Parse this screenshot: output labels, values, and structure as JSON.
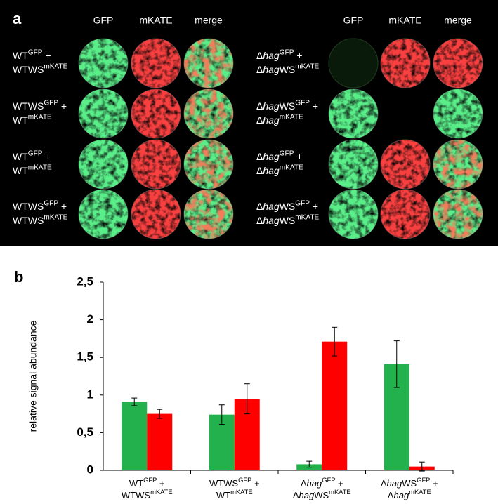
{
  "panel_a": {
    "label": "a",
    "left": {
      "headers": [
        "GFP",
        "mKATE",
        "merge"
      ],
      "rows": [
        [
          [
            {
              "t": "WT"
            },
            {
              "sup": "GFP"
            },
            {
              "t": " +"
            }
          ],
          [
            {
              "t": "WTWS"
            },
            {
              "sup": "mKATE"
            }
          ]
        ],
        [
          [
            {
              "t": "WTWS"
            },
            {
              "sup": "GFP"
            },
            {
              "t": " +"
            }
          ],
          [
            {
              "t": "WT"
            },
            {
              "sup": "mKATE"
            }
          ]
        ],
        [
          [
            {
              "t": "WT"
            },
            {
              "sup": "GFP"
            },
            {
              "t": " +"
            }
          ],
          [
            {
              "t": "WT"
            },
            {
              "sup": "mKATE"
            }
          ]
        ],
        [
          [
            {
              "t": "WTWS"
            },
            {
              "sup": "GFP"
            },
            {
              "t": " +"
            }
          ],
          [
            {
              "t": "WTWS"
            },
            {
              "sup": "mKATE"
            }
          ]
        ]
      ]
    },
    "right": {
      "headers": [
        "GFP",
        "mKATE",
        "merge"
      ],
      "rows": [
        [
          [
            {
              "t": "Δ"
            },
            {
              "i": "hag"
            },
            {
              "sup": "GFP"
            },
            {
              "t": " +"
            }
          ],
          [
            {
              "t": "Δ"
            },
            {
              "i": "hag"
            },
            {
              "t": "WS"
            },
            {
              "sup": "mKATE"
            }
          ]
        ],
        [
          [
            {
              "t": "Δ"
            },
            {
              "i": "hag"
            },
            {
              "t": "WS"
            },
            {
              "sup": "GFP"
            },
            {
              "t": " +"
            }
          ],
          [
            {
              "t": "Δ"
            },
            {
              "i": "hag"
            },
            {
              "sup": "mKATE"
            }
          ]
        ],
        [
          [
            {
              "t": "Δ"
            },
            {
              "i": "hag"
            },
            {
              "sup": "GFP"
            },
            {
              "t": " +"
            }
          ],
          [
            {
              "t": "Δ"
            },
            {
              "i": "hag"
            },
            {
              "sup": "mKATE"
            }
          ]
        ],
        [
          [
            {
              "t": "Δ"
            },
            {
              "i": "hag"
            },
            {
              "t": "WS"
            },
            {
              "sup": "GFP"
            },
            {
              "t": " +"
            }
          ],
          [
            {
              "t": "Δ"
            },
            {
              "i": "hag"
            },
            {
              "t": "WS"
            },
            {
              "sup": "mKATE"
            }
          ]
        ]
      ]
    }
  },
  "chart_data": {
    "type": "bar",
    "panel_label": "b",
    "ylabel": "relative signal abundance",
    "categories": [
      [
        [
          {
            "t": "WT"
          },
          {
            "sup": "GFP"
          },
          {
            "t": " +"
          }
        ],
        [
          {
            "t": "WTWS"
          },
          {
            "sup": "mKATE"
          }
        ]
      ],
      [
        [
          {
            "t": "WTWS"
          },
          {
            "sup": "GFP"
          },
          {
            "t": " +"
          }
        ],
        [
          {
            "t": "WT"
          },
          {
            "sup": "mKATE"
          }
        ]
      ],
      [
        [
          {
            "t": "Δ"
          },
          {
            "i": "hag"
          },
          {
            "sup": "GFP"
          },
          {
            "t": " +"
          }
        ],
        [
          {
            "t": "Δ"
          },
          {
            "i": "hag"
          },
          {
            "t": "WS"
          },
          {
            "sup": "mKATE"
          }
        ]
      ],
      [
        [
          {
            "t": "Δ"
          },
          {
            "i": "hag"
          },
          {
            "t": "WS"
          },
          {
            "sup": "GFP"
          },
          {
            "t": " +"
          }
        ],
        [
          {
            "t": "Δ"
          },
          {
            "i": "hag"
          },
          {
            "sup": "mKATE"
          }
        ]
      ]
    ],
    "series": [
      {
        "color": "#22b14c",
        "values": [
          0.91,
          0.74,
          0.08,
          1.41
        ],
        "errors": [
          0.05,
          0.13,
          0.04,
          0.31
        ]
      },
      {
        "color": "#ff0000",
        "values": [
          0.75,
          0.95,
          1.71,
          0.05
        ],
        "errors": [
          0.06,
          0.2,
          0.19,
          0.06
        ]
      }
    ],
    "ylim": [
      0,
      2.5
    ],
    "yticks": [
      0,
      {
        "value": 0.5,
        "label": "0,5"
      },
      1,
      {
        "value": 1.5,
        "label": "1,5"
      },
      2,
      {
        "value": 2.5,
        "label": "2,5"
      }
    ]
  }
}
